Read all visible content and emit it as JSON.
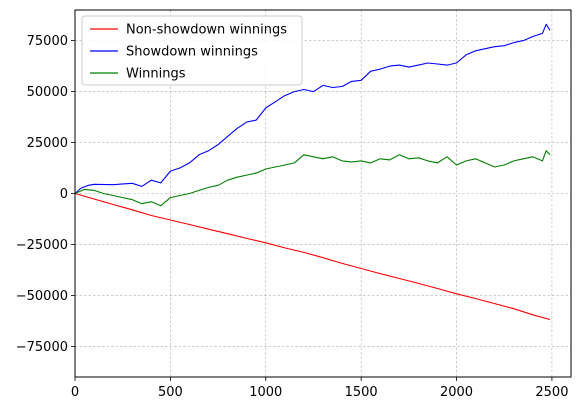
{
  "chart_data": {
    "type": "line",
    "title": "",
    "xlabel": "",
    "ylabel": "",
    "xlim": [
      0,
      2600
    ],
    "ylim": [
      -90000,
      90000
    ],
    "xticks": [
      0,
      500,
      1000,
      1500,
      2000,
      2500
    ],
    "yticks": [
      -75000,
      -50000,
      -25000,
      0,
      25000,
      50000,
      75000
    ],
    "grid": true,
    "legend_position": "upper-left",
    "series": [
      {
        "name": "Non-showdown winnings",
        "color": "#ff0000",
        "x": [
          0,
          100,
          200,
          300,
          400,
          500,
          600,
          700,
          800,
          900,
          1000,
          1100,
          1200,
          1300,
          1400,
          1500,
          1600,
          1700,
          1800,
          1900,
          2000,
          2100,
          2200,
          2300,
          2400,
          2490
        ],
        "y": [
          0,
          -2700,
          -5400,
          -8000,
          -10800,
          -13000,
          -15200,
          -17500,
          -19700,
          -22000,
          -24200,
          -26700,
          -28900,
          -31500,
          -34300,
          -36800,
          -39300,
          -41700,
          -44100,
          -46600,
          -49200,
          -51500,
          -54000,
          -56500,
          -59500,
          -61800
        ]
      },
      {
        "name": "Showdown winnings",
        "color": "#0000ff",
        "x": [
          0,
          30,
          70,
          100,
          200,
          300,
          350,
          400,
          450,
          500,
          550,
          600,
          650,
          700,
          750,
          800,
          850,
          900,
          950,
          1000,
          1050,
          1100,
          1150,
          1200,
          1250,
          1300,
          1350,
          1400,
          1450,
          1500,
          1550,
          1600,
          1650,
          1700,
          1750,
          1800,
          1850,
          1900,
          1950,
          2000,
          2050,
          2100,
          2150,
          2200,
          2250,
          2300,
          2350,
          2400,
          2450,
          2470,
          2490
        ],
        "y": [
          0,
          2500,
          4000,
          4500,
          4300,
          5000,
          3500,
          6500,
          5200,
          11000,
          12500,
          15000,
          19000,
          21000,
          24000,
          28000,
          32000,
          35000,
          36000,
          42000,
          45000,
          48000,
          50000,
          51000,
          50000,
          53000,
          52000,
          52500,
          55000,
          55500,
          60000,
          61000,
          62500,
          63000,
          62000,
          63000,
          64000,
          63500,
          63000,
          64000,
          68000,
          70000,
          71000,
          72000,
          72500,
          74000,
          75000,
          77000,
          78500,
          83000,
          80000
        ]
      },
      {
        "name": "Winnings",
        "color": "#008000",
        "x": [
          0,
          50,
          100,
          150,
          200,
          250,
          300,
          350,
          400,
          450,
          500,
          550,
          600,
          650,
          700,
          750,
          800,
          850,
          900,
          950,
          1000,
          1050,
          1100,
          1150,
          1200,
          1250,
          1300,
          1350,
          1400,
          1450,
          1500,
          1550,
          1600,
          1650,
          1700,
          1750,
          1800,
          1850,
          1900,
          1950,
          2000,
          2050,
          2100,
          2150,
          2200,
          2250,
          2300,
          2350,
          2400,
          2450,
          2470,
          2490
        ],
        "y": [
          0,
          2000,
          1500,
          0,
          -1000,
          -2000,
          -3000,
          -5000,
          -4000,
          -6000,
          -2000,
          -1000,
          0,
          1500,
          3000,
          4000,
          6500,
          8000,
          9000,
          10000,
          12000,
          13000,
          14000,
          15000,
          19000,
          18000,
          17000,
          18000,
          16000,
          15500,
          16000,
          15000,
          17000,
          16500,
          19000,
          17000,
          17500,
          16000,
          15000,
          18000,
          14000,
          16000,
          17000,
          15000,
          13000,
          14000,
          16000,
          17000,
          18000,
          16000,
          21000,
          19000
        ]
      }
    ]
  }
}
